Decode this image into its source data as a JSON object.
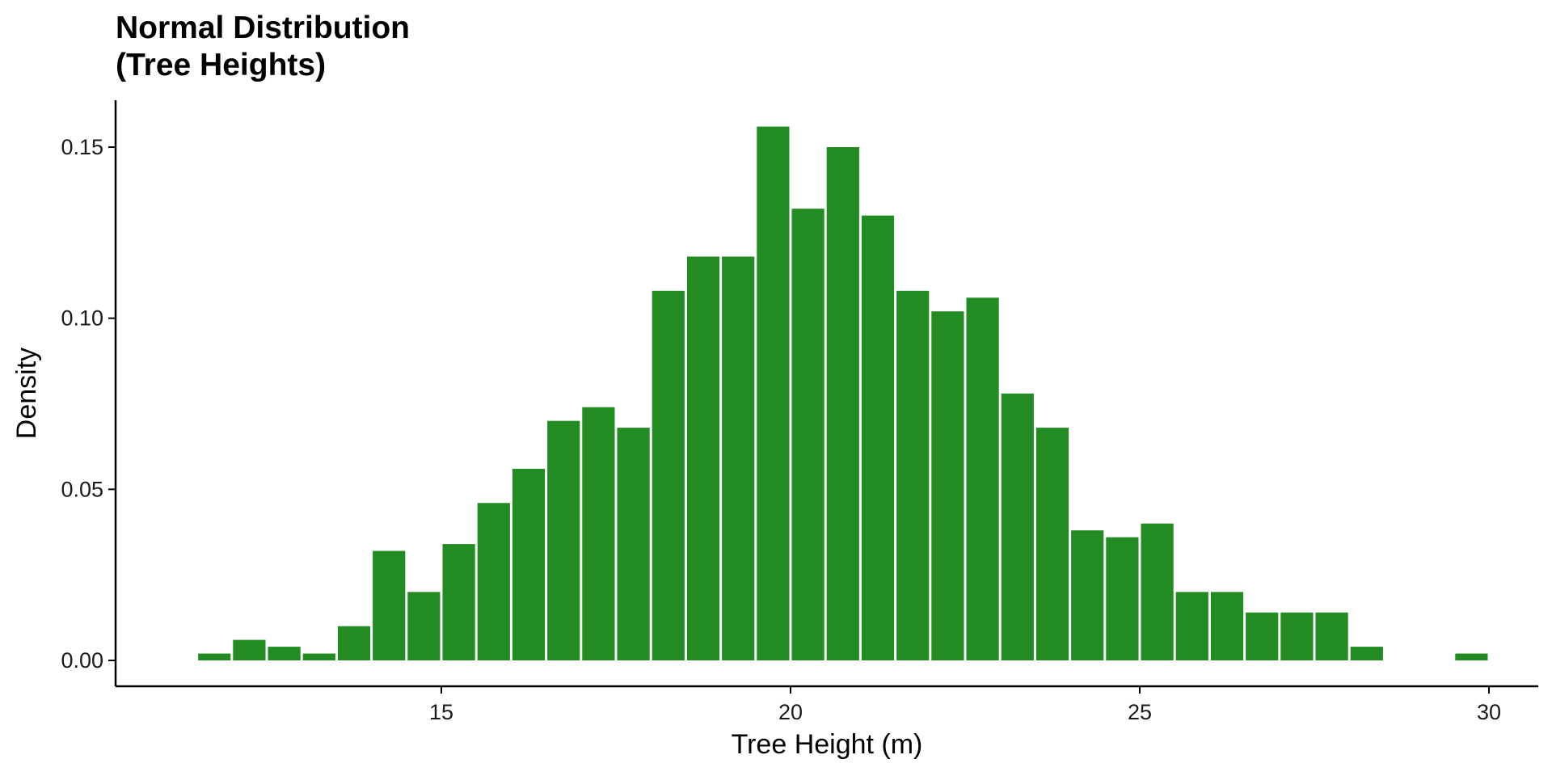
{
  "chart_data": {
    "type": "bar",
    "title_lines": [
      "Normal Distribution",
      "(Tree Heights)"
    ],
    "xlabel": "Tree Height (m)",
    "ylabel": "Density",
    "bar_color": "#228B22",
    "bin_width": 0.5,
    "xlim": [
      10.9,
      30.7
    ],
    "ylim": [
      0,
      0.164
    ],
    "xticks": [
      15,
      20,
      25,
      30
    ],
    "xtick_labels": [
      "15",
      "20",
      "25",
      "30"
    ],
    "yticks": [
      0,
      0.05,
      0.1,
      0.15
    ],
    "ytick_labels": [
      "0.00",
      "0.05",
      "0.10",
      "0.15"
    ],
    "bins": [
      {
        "x0": 11.5,
        "value": 0.002
      },
      {
        "x0": 12.0,
        "value": 0.006
      },
      {
        "x0": 12.5,
        "value": 0.004
      },
      {
        "x0": 13.0,
        "value": 0.002
      },
      {
        "x0": 13.5,
        "value": 0.01
      },
      {
        "x0": 14.0,
        "value": 0.032
      },
      {
        "x0": 14.5,
        "value": 0.02
      },
      {
        "x0": 15.0,
        "value": 0.034
      },
      {
        "x0": 15.5,
        "value": 0.046
      },
      {
        "x0": 16.0,
        "value": 0.056
      },
      {
        "x0": 16.5,
        "value": 0.07
      },
      {
        "x0": 17.0,
        "value": 0.074
      },
      {
        "x0": 17.5,
        "value": 0.068
      },
      {
        "x0": 18.0,
        "value": 0.108
      },
      {
        "x0": 18.5,
        "value": 0.118
      },
      {
        "x0": 19.0,
        "value": 0.118
      },
      {
        "x0": 19.5,
        "value": 0.156
      },
      {
        "x0": 20.0,
        "value": 0.132
      },
      {
        "x0": 20.5,
        "value": 0.15
      },
      {
        "x0": 21.0,
        "value": 0.13
      },
      {
        "x0": 21.5,
        "value": 0.108
      },
      {
        "x0": 22.0,
        "value": 0.102
      },
      {
        "x0": 22.5,
        "value": 0.106
      },
      {
        "x0": 23.0,
        "value": 0.078
      },
      {
        "x0": 23.5,
        "value": 0.068
      },
      {
        "x0": 24.0,
        "value": 0.038
      },
      {
        "x0": 24.5,
        "value": 0.036
      },
      {
        "x0": 25.0,
        "value": 0.04
      },
      {
        "x0": 25.5,
        "value": 0.02
      },
      {
        "x0": 26.0,
        "value": 0.02
      },
      {
        "x0": 26.5,
        "value": 0.014
      },
      {
        "x0": 27.0,
        "value": 0.014
      },
      {
        "x0": 27.5,
        "value": 0.014
      },
      {
        "x0": 28.0,
        "value": 0.004
      },
      {
        "x0": 28.5,
        "value": 0.0
      },
      {
        "x0": 29.0,
        "value": 0.0
      },
      {
        "x0": 29.5,
        "value": 0.002
      }
    ]
  }
}
